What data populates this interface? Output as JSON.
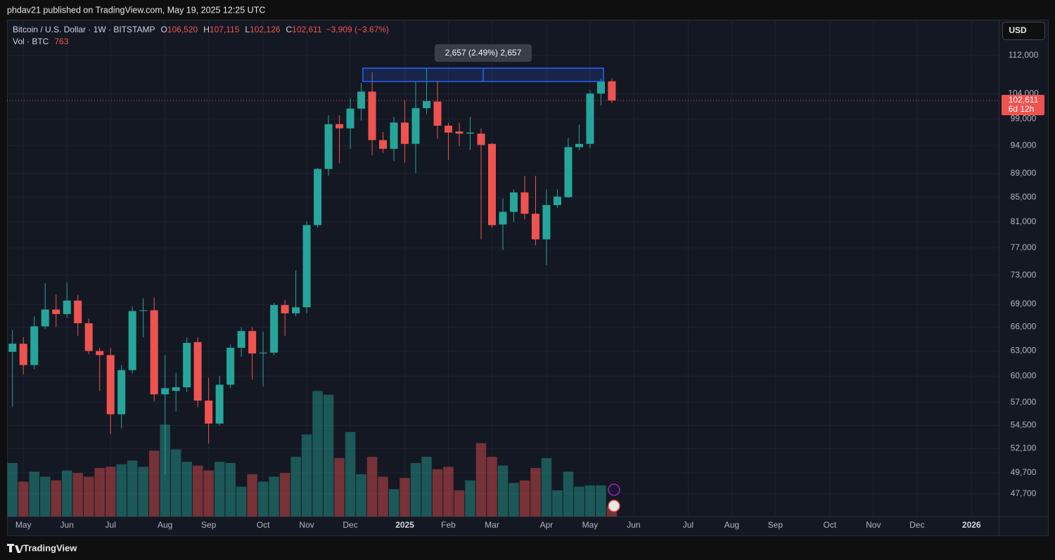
{
  "header": {
    "published": "phdav21 published on TradingView.com, May 19, 2025 12:25 UTC"
  },
  "toolbar": {
    "currency": "USD"
  },
  "footer": {
    "brand": "TradingView"
  },
  "chart_data": {
    "type": "candlestick",
    "legend": {
      "symbol": "Bitcoin / U.S. Dollar · 1W · BITSTAMP",
      "o_key": "O",
      "o": "106,520",
      "h_key": "H",
      "h": "107,115",
      "l_key": "L",
      "l": "102,126",
      "c_key": "C",
      "c": "102,611",
      "change": "−3,909 (−3.67%)",
      "vol_key": "Vol · BTC",
      "vol": "763"
    },
    "last_price_label": "102,611",
    "countdown": "6d 12h",
    "measure_label": "2,657 (2.49%) 2,657",
    "up_color": "#26a69a",
    "down_color": "#ef5350",
    "log_scale": true,
    "grid": true,
    "categories": [
      null,
      "May",
      null,
      null,
      null,
      "Jun",
      null,
      null,
      null,
      "Jul",
      null,
      null,
      null,
      null,
      "Aug",
      null,
      null,
      null,
      "Sep",
      null,
      null,
      null,
      null,
      "Oct",
      null,
      null,
      null,
      "Nov",
      null,
      null,
      null,
      "Dec",
      null,
      null,
      null,
      null,
      "2025",
      null,
      null,
      null,
      "Feb",
      null,
      null,
      null,
      "Mar",
      null,
      null,
      null,
      null,
      "Apr",
      null,
      null,
      null,
      "May",
      null,
      null,
      null,
      "Jun",
      null,
      null,
      null,
      null,
      "Jul",
      null,
      null,
      null,
      "Aug",
      null,
      null,
      null,
      "Sep",
      null,
      null,
      null,
      null,
      "Oct",
      null,
      null,
      null,
      "Nov",
      null,
      null,
      null,
      "Dec",
      null,
      null,
      null,
      null,
      "2026",
      null,
      null
    ],
    "open": [
      62900,
      63900,
      61300,
      66100,
      68300,
      67700,
      69500,
      66500,
      63000,
      62500,
      55700,
      60700,
      68100,
      68200,
      57900,
      58300,
      58700,
      64100,
      57200,
      54700,
      59000,
      63400,
      65500,
      62700,
      62800,
      68900,
      67800,
      68600,
      80500,
      89800,
      98000,
      97200,
      101000,
      104400,
      95000,
      93400,
      98300,
      94300,
      101100,
      102400,
      97700,
      96600,
      96200,
      96200,
      94300,
      80600,
      82600,
      85800,
      82300,
      78300,
      83700,
      85000,
      93700,
      94300,
      104000,
      106520,
      null,
      null,
      null,
      null,
      null,
      null,
      null,
      null,
      null,
      null,
      null,
      null,
      null,
      null,
      null,
      null,
      null,
      null,
      null,
      null,
      null,
      null,
      null,
      null,
      null,
      null,
      null,
      null,
      null,
      null,
      null,
      null,
      null,
      null,
      null
    ],
    "high": [
      65600,
      64700,
      67400,
      71900,
      70300,
      72000,
      70300,
      67100,
      63400,
      63400,
      61300,
      68700,
      69800,
      69900,
      62500,
      60400,
      64700,
      64700,
      59800,
      60000,
      63800,
      66000,
      66000,
      65400,
      69200,
      69600,
      73700,
      81100,
      90000,
      99700,
      99700,
      103100,
      106200,
      108400,
      96500,
      99400,
      102600,
      106400,
      109300,
      106400,
      98300,
      98300,
      99400,
      97200,
      94500,
      84800,
      86300,
      88600,
      88600,
      86300,
      86300,
      95400,
      97900,
      104700,
      107100,
      107115,
      null,
      null,
      null,
      null,
      null,
      null,
      null,
      null,
      null,
      null,
      null,
      null,
      null,
      null,
      null,
      null,
      null,
      null,
      null,
      null,
      null,
      null,
      null,
      null,
      null,
      null,
      null,
      null,
      null,
      null,
      null,
      null,
      null,
      null,
      null
    ],
    "low": [
      56500,
      60200,
      60800,
      65800,
      66000,
      67200,
      64900,
      62600,
      58300,
      53600,
      54200,
      60300,
      64700,
      57100,
      49500,
      56000,
      58200,
      56500,
      52600,
      54500,
      58600,
      62300,
      59600,
      58800,
      62500,
      64900,
      67400,
      67800,
      80100,
      88600,
      90800,
      93400,
      98700,
      92200,
      92600,
      91200,
      90900,
      89100,
      99900,
      95300,
      91400,
      93900,
      93200,
      78300,
      80100,
      76700,
      81000,
      81400,
      77400,
      74500,
      83200,
      84900,
      93100,
      93500,
      101600,
      102126,
      null,
      null,
      null,
      null,
      null,
      null,
      null,
      null,
      null,
      null,
      null,
      null,
      null,
      null,
      null,
      null,
      null,
      null,
      null,
      null,
      null,
      null,
      null,
      null,
      null,
      null,
      null,
      null,
      null,
      null,
      null,
      null,
      null,
      null,
      null
    ],
    "close": [
      63900,
      61300,
      66100,
      68300,
      67700,
      69500,
      66500,
      63000,
      62500,
      55700,
      60700,
      68100,
      68200,
      57900,
      58600,
      58700,
      64000,
      57200,
      54700,
      59000,
      63400,
      65500,
      62700,
      62800,
      68900,
      67800,
      68600,
      80500,
      89800,
      98000,
      97200,
      101000,
      104400,
      95000,
      93400,
      98300,
      94300,
      101100,
      102500,
      97700,
      96400,
      96200,
      96400,
      94100,
      80500,
      82600,
      85800,
      82300,
      78300,
      83700,
      85100,
      93700,
      94300,
      104000,
      106500,
      102611,
      null,
      null,
      null,
      null,
      null,
      null,
      null,
      null,
      null,
      null,
      null,
      null,
      null,
      null,
      null,
      null,
      null,
      null,
      null,
      null,
      null,
      null,
      null,
      null,
      null,
      null,
      null,
      null,
      null,
      null,
      null,
      null,
      null,
      null,
      null
    ],
    "volume": [
      4300,
      2800,
      3600,
      3200,
      2900,
      3700,
      3500,
      3200,
      3900,
      4000,
      4200,
      4500,
      4000,
      5300,
      7400,
      5400,
      4400,
      4100,
      3700,
      4400,
      4300,
      2400,
      3400,
      2800,
      3200,
      3500,
      4800,
      6600,
      10100,
      9800,
      4700,
      6800,
      3400,
      4800,
      3200,
      2200,
      3100,
      4300,
      4800,
      3800,
      4000,
      2100,
      2900,
      5900,
      4800,
      4100,
      2700,
      2900,
      3900,
      4700,
      2100,
      3600,
      2400,
      2500,
      2500,
      763,
      null,
      null,
      null,
      null,
      null,
      null,
      null,
      null,
      null,
      null,
      null,
      null,
      null,
      null,
      null,
      null,
      null,
      null,
      null,
      null,
      null,
      null,
      null,
      null,
      null,
      null,
      null,
      null,
      null,
      null,
      null,
      null,
      null,
      null,
      null
    ],
    "volume_ylim": [
      0,
      40000
    ],
    "ylim": [
      45650,
      120100
    ],
    "yticks": [
      {
        "value": 47700,
        "label": "47,700"
      },
      {
        "value": 49700,
        "label": "49,700"
      },
      {
        "value": 52100,
        "label": "52,100"
      },
      {
        "value": 54500,
        "label": "54,500"
      },
      {
        "value": 57000,
        "label": "57,000"
      },
      {
        "value": 60000,
        "label": "60,000"
      },
      {
        "value": 63000,
        "label": "63,000"
      },
      {
        "value": 66000,
        "label": "66,000"
      },
      {
        "value": 69000,
        "label": "69,000"
      },
      {
        "value": 73000,
        "label": "73,000"
      },
      {
        "value": 77000,
        "label": "77,000"
      },
      {
        "value": 81000,
        "label": "81,000"
      },
      {
        "value": 85000,
        "label": "85,000"
      },
      {
        "value": 89000,
        "label": "89,000"
      },
      {
        "value": 94000,
        "label": "94,000"
      },
      {
        "value": 99000,
        "label": "99,000"
      },
      {
        "value": 104000,
        "label": "104,000"
      },
      {
        "value": 112000,
        "label": "112,000"
      }
    ]
  }
}
